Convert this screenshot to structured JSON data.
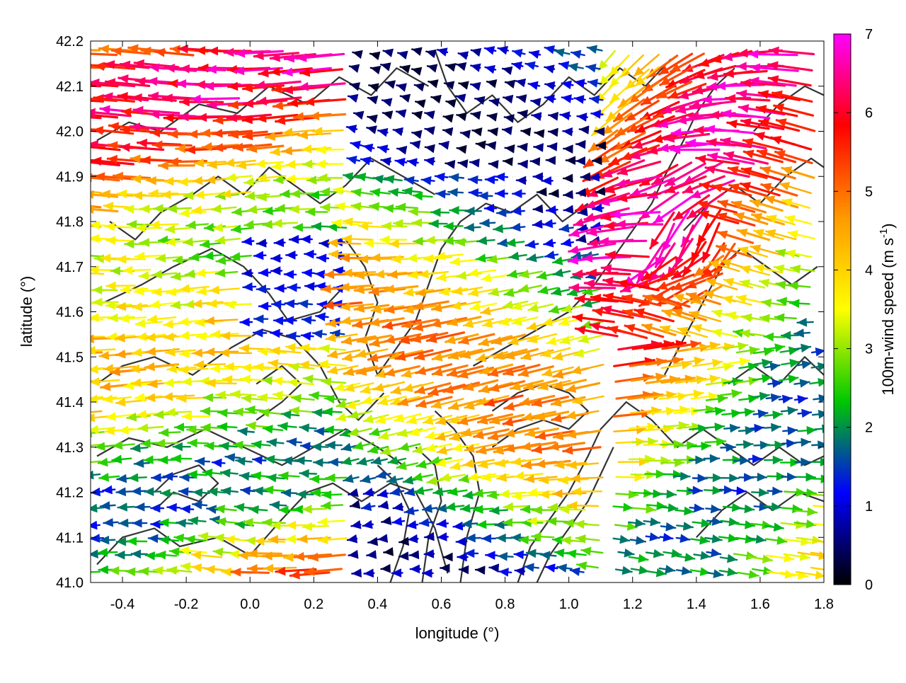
{
  "chart_data": {
    "type": "vector-field",
    "title": "",
    "xlabel": "longitude (°)",
    "ylabel": "latitude (°)",
    "xlim": [
      -0.5,
      1.8
    ],
    "ylim": [
      41.0,
      42.2
    ],
    "xticks": [
      -0.4,
      -0.2,
      0.0,
      0.2,
      0.4,
      0.6,
      0.8,
      1.0,
      1.2,
      1.4,
      1.6,
      1.8
    ],
    "yticks": [
      41.0,
      41.1,
      41.2,
      41.3,
      41.4,
      41.5,
      41.6,
      41.7,
      41.8,
      41.9,
      42.0,
      42.1,
      42.2
    ],
    "xtick_labels": [
      "-0.4",
      "-0.2",
      "0.0",
      "0.2",
      "0.4",
      "0.6",
      "0.8",
      "1.0",
      "1.2",
      "1.4",
      "1.6",
      "1.8"
    ],
    "ytick_labels": [
      "41.0",
      "41.1",
      "41.2",
      "41.3",
      "41.4",
      "41.5",
      "41.6",
      "41.7",
      "41.8",
      "41.9",
      "42.0",
      "42.1",
      "42.2"
    ],
    "grid": true,
    "colorbar": {
      "label": "100m-wind speed (m s-1)",
      "label_text": "100m-wind speed (m s",
      "label_sup": "-1",
      "label_end": ")",
      "range": [
        0,
        7
      ],
      "ticks": [
        0,
        1,
        2,
        3,
        4,
        5,
        6,
        7
      ],
      "tick_labels": [
        "0",
        "1",
        "2",
        "3",
        "4",
        "5",
        "6",
        "7"
      ],
      "colors": [
        "#000000",
        "#0000ff",
        "#00c800",
        "#ffff00",
        "#ff9900",
        "#ff0000",
        "#ff00ff"
      ]
    },
    "contour_color": "#333333",
    "contour_lines": [
      [
        [
          -0.48,
          41.04
        ],
        [
          -0.4,
          41.1
        ],
        [
          -0.3,
          41.12
        ],
        [
          -0.22,
          41.08
        ],
        [
          -0.1,
          41.1
        ],
        [
          0.0,
          41.06
        ],
        [
          0.1,
          41.14
        ],
        [
          0.18,
          41.2
        ],
        [
          0.26,
          41.22
        ],
        [
          0.35,
          41.18
        ],
        [
          0.44,
          41.22
        ],
        [
          0.52,
          41.2
        ],
        [
          0.58,
          41.12
        ],
        [
          0.62,
          41.02
        ]
      ],
      [
        [
          -0.48,
          41.28
        ],
        [
          -0.38,
          41.32
        ],
        [
          -0.26,
          41.3
        ],
        [
          -0.14,
          41.34
        ],
        [
          -0.02,
          41.3
        ],
        [
          0.1,
          41.26
        ],
        [
          0.2,
          41.3
        ],
        [
          0.3,
          41.34
        ],
        [
          0.4,
          41.3
        ],
        [
          0.48,
          41.26
        ]
      ],
      [
        [
          -0.48,
          41.44
        ],
        [
          -0.4,
          41.48
        ],
        [
          -0.3,
          41.5
        ],
        [
          -0.18,
          41.46
        ],
        [
          -0.06,
          41.52
        ],
        [
          0.04,
          41.56
        ],
        [
          0.14,
          41.54
        ],
        [
          0.22,
          41.48
        ],
        [
          0.28,
          41.4
        ],
        [
          0.34,
          41.36
        ],
        [
          0.42,
          41.42
        ]
      ],
      [
        [
          -0.46,
          41.62
        ],
        [
          -0.34,
          41.66
        ],
        [
          -0.24,
          41.7
        ],
        [
          -0.12,
          41.74
        ],
        [
          -0.02,
          41.7
        ],
        [
          0.06,
          41.64
        ],
        [
          0.12,
          41.58
        ],
        [
          0.22,
          41.6
        ],
        [
          0.3,
          41.66
        ]
      ],
      [
        [
          -0.44,
          41.8
        ],
        [
          -0.36,
          41.76
        ],
        [
          -0.28,
          41.82
        ],
        [
          -0.18,
          41.86
        ],
        [
          -0.1,
          41.9
        ],
        [
          -0.02,
          41.86
        ],
        [
          0.06,
          41.92
        ],
        [
          0.14,
          41.88
        ],
        [
          0.22,
          41.84
        ],
        [
          0.3,
          41.88
        ],
        [
          0.38,
          41.94
        ],
        [
          0.48,
          41.9
        ],
        [
          0.58,
          41.86
        ]
      ],
      [
        [
          -0.48,
          41.98
        ],
        [
          -0.38,
          42.02
        ],
        [
          -0.28,
          42.0
        ],
        [
          -0.16,
          42.06
        ],
        [
          -0.04,
          42.04
        ],
        [
          0.06,
          42.1
        ],
        [
          0.18,
          42.06
        ],
        [
          0.28,
          42.12
        ],
        [
          0.38,
          42.08
        ],
        [
          0.46,
          42.14
        ],
        [
          0.56,
          42.1
        ]
      ],
      [
        [
          0.3,
          41.76
        ],
        [
          0.36,
          41.7
        ],
        [
          0.4,
          41.62
        ],
        [
          0.36,
          41.54
        ],
        [
          0.4,
          41.46
        ],
        [
          0.46,
          41.52
        ],
        [
          0.52,
          41.58
        ],
        [
          0.56,
          41.66
        ],
        [
          0.6,
          41.74
        ],
        [
          0.66,
          41.8
        ],
        [
          0.74,
          41.84
        ],
        [
          0.82,
          41.82
        ],
        [
          0.9,
          41.86
        ],
        [
          0.98,
          41.8
        ],
        [
          1.06,
          41.84
        ]
      ],
      [
        [
          0.58,
          42.18
        ],
        [
          0.62,
          42.1
        ],
        [
          0.68,
          42.04
        ],
        [
          0.76,
          42.08
        ],
        [
          0.84,
          42.02
        ],
        [
          0.92,
          42.06
        ],
        [
          1.0,
          42.12
        ],
        [
          1.08,
          42.08
        ],
        [
          1.16,
          42.14
        ],
        [
          1.24,
          42.1
        ],
        [
          1.32,
          42.16
        ]
      ],
      [
        [
          0.44,
          41.0
        ],
        [
          0.48,
          41.08
        ],
        [
          0.5,
          41.16
        ],
        [
          0.46,
          41.22
        ],
        [
          0.4,
          41.26
        ]
      ],
      [
        [
          0.54,
          41.0
        ],
        [
          0.56,
          41.1
        ],
        [
          0.6,
          41.18
        ],
        [
          0.58,
          41.26
        ],
        [
          0.52,
          41.3
        ]
      ],
      [
        [
          0.66,
          41.0
        ],
        [
          0.68,
          41.1
        ],
        [
          0.72,
          41.2
        ],
        [
          0.7,
          41.28
        ],
        [
          0.64,
          41.34
        ],
        [
          0.58,
          41.38
        ]
      ],
      [
        [
          0.84,
          41.0
        ],
        [
          0.88,
          41.08
        ],
        [
          0.94,
          41.14
        ],
        [
          1.0,
          41.2
        ],
        [
          1.06,
          41.28
        ],
        [
          1.1,
          41.34
        ],
        [
          1.18,
          41.4
        ],
        [
          1.26,
          41.36
        ],
        [
          1.34,
          41.3
        ],
        [
          1.42,
          41.34
        ],
        [
          1.5,
          41.3
        ],
        [
          1.58,
          41.26
        ],
        [
          1.66,
          41.3
        ],
        [
          1.74,
          41.26
        ],
        [
          1.8,
          41.28
        ]
      ],
      [
        [
          0.9,
          41.0
        ],
        [
          0.94,
          41.06
        ],
        [
          1.0,
          41.12
        ],
        [
          1.06,
          41.18
        ],
        [
          1.1,
          41.24
        ],
        [
          1.14,
          41.3
        ]
      ],
      [
        [
          0.76,
          41.3
        ],
        [
          0.84,
          41.34
        ],
        [
          0.92,
          41.36
        ],
        [
          1.0,
          41.34
        ],
        [
          1.06,
          41.38
        ],
        [
          1.0,
          41.42
        ],
        [
          0.92,
          41.44
        ],
        [
          0.84,
          41.42
        ],
        [
          0.76,
          41.38
        ]
      ],
      [
        [
          0.7,
          41.48
        ],
        [
          0.8,
          41.52
        ],
        [
          0.9,
          41.56
        ],
        [
          1.0,
          41.6
        ],
        [
          1.08,
          41.66
        ],
        [
          1.14,
          41.72
        ],
        [
          1.2,
          41.78
        ],
        [
          1.26,
          41.84
        ],
        [
          1.3,
          41.9
        ],
        [
          1.36,
          41.98
        ],
        [
          1.4,
          42.04
        ],
        [
          1.46,
          42.1
        ],
        [
          1.52,
          42.14
        ]
      ],
      [
        [
          1.3,
          41.46
        ],
        [
          1.36,
          41.54
        ],
        [
          1.42,
          41.62
        ],
        [
          1.48,
          41.7
        ],
        [
          1.54,
          41.74
        ],
        [
          1.62,
          41.7
        ],
        [
          1.7,
          41.66
        ],
        [
          1.78,
          41.7
        ]
      ],
      [
        [
          1.5,
          41.44
        ],
        [
          1.58,
          41.48
        ],
        [
          1.66,
          41.44
        ],
        [
          1.74,
          41.5
        ],
        [
          1.8,
          41.46
        ]
      ],
      [
        [
          1.4,
          41.1
        ],
        [
          1.48,
          41.16
        ],
        [
          1.56,
          41.2
        ],
        [
          1.64,
          41.16
        ],
        [
          1.72,
          41.2
        ],
        [
          1.8,
          41.18
        ]
      ],
      [
        [
          1.36,
          41.78
        ],
        [
          1.44,
          41.84
        ],
        [
          1.52,
          41.88
        ],
        [
          1.6,
          41.84
        ],
        [
          1.68,
          41.9
        ],
        [
          1.76,
          41.94
        ],
        [
          1.8,
          41.92
        ]
      ],
      [
        [
          1.58,
          42.0
        ],
        [
          1.66,
          42.06
        ],
        [
          1.74,
          42.1
        ],
        [
          1.8,
          42.08
        ]
      ],
      [
        [
          -0.3,
          41.16
        ],
        [
          -0.24,
          41.2
        ],
        [
          -0.16,
          41.18
        ],
        [
          -0.1,
          41.22
        ],
        [
          -0.16,
          41.26
        ],
        [
          -0.24,
          41.24
        ],
        [
          -0.3,
          41.2
        ]
      ],
      [
        [
          0.02,
          41.36
        ],
        [
          0.1,
          41.4
        ],
        [
          0.16,
          41.44
        ],
        [
          0.1,
          41.48
        ],
        [
          0.02,
          41.44
        ]
      ]
    ]
  }
}
